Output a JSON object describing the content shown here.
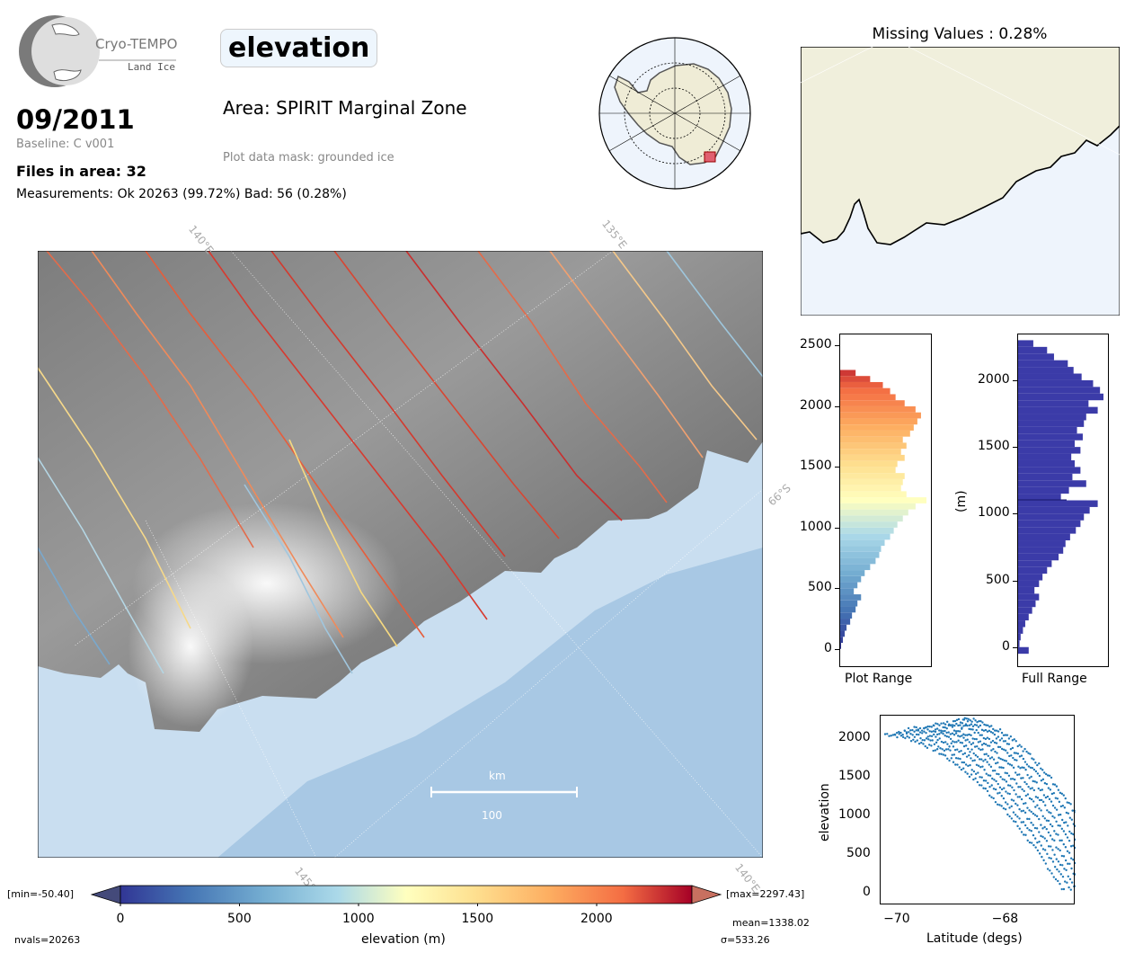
{
  "logo": {
    "name": "Cryo-TEMPO",
    "sub": "Land Ice"
  },
  "parameter": "elevation",
  "date": "09/2011",
  "baseline": "Baseline: C v001",
  "files": "Files in area: 32",
  "measurements": "Measurements: Ok 20263 (99.72%) Bad: 56 (0.28%)",
  "area": "Area: SPIRIT Marginal Zone",
  "mask": "Plot data mask: grounded ice",
  "missing": "Missing Values : 0.28%",
  "map": {
    "lon_labels": [
      "140°E",
      "135°E",
      "145°E",
      "140°E"
    ],
    "lat_label": "66°S",
    "scale_unit": "km",
    "scale_value": "100"
  },
  "colorbar": {
    "min_label": "[min=-50.40]",
    "max_label": "[max=2297.43]",
    "ticks": [
      "0",
      "500",
      "1000",
      "1500",
      "2000"
    ],
    "label": "elevation (m)",
    "mean": "mean=1338.02",
    "sigma": "σ=533.26",
    "nvals": "nvals=20263",
    "vmin": 0,
    "vmax": 2400
  },
  "hist_plot_range": {
    "xlabel": "Plot Range",
    "yticks": [
      "0",
      "500",
      "1000",
      "1500",
      "2000",
      "2500"
    ]
  },
  "hist_full_range": {
    "xlabel": "Full Range",
    "ylabel": "(m)",
    "yticks": [
      "0",
      "500",
      "1000",
      "1500",
      "2000"
    ]
  },
  "scatter": {
    "xlabel": "Latitude (degs)",
    "ylabel": "elevation",
    "xticks": [
      "−70",
      "−68"
    ],
    "yticks": [
      "0",
      "500",
      "1000",
      "1500",
      "2000"
    ]
  },
  "colors": {
    "ocean": "#a8cce6",
    "land": "#f0efdc",
    "hist_full": "#3b3ba8",
    "scatter": "#1f77b4"
  },
  "chart_data": [
    {
      "type": "bar",
      "title": "",
      "xlabel": "Plot Range",
      "ylabel": "",
      "ylim": [
        -150,
        2600
      ],
      "bins": [
        0,
        50,
        100,
        150,
        200,
        250,
        300,
        350,
        400,
        450,
        500,
        550,
        600,
        650,
        700,
        750,
        800,
        850,
        900,
        950,
        1000,
        1050,
        1100,
        1150,
        1200,
        1250,
        1300,
        1350,
        1400,
        1450,
        1500,
        1550,
        1600,
        1650,
        1700,
        1750,
        1800,
        1850,
        1900,
        1950,
        2000,
        2050,
        2100,
        2150,
        2200,
        2250
      ],
      "values": [
        2,
        4,
        6,
        8,
        12,
        14,
        18,
        20,
        24,
        16,
        20,
        24,
        28,
        34,
        40,
        44,
        46,
        50,
        56,
        60,
        64,
        70,
        76,
        84,
        96,
        74,
        68,
        70,
        72,
        62,
        64,
        72,
        68,
        74,
        70,
        78,
        82,
        86,
        90,
        84,
        72,
        62,
        56,
        48,
        34,
        18
      ]
    },
    {
      "type": "bar",
      "title": "",
      "xlabel": "Full Range",
      "ylabel": "(m)",
      "ylim": [
        -150,
        2350
      ],
      "bins": [
        -50,
        0,
        50,
        100,
        150,
        200,
        250,
        300,
        350,
        400,
        450,
        500,
        550,
        600,
        650,
        700,
        750,
        800,
        850,
        900,
        950,
        1000,
        1050,
        1100,
        1150,
        1200,
        1250,
        1300,
        1350,
        1400,
        1450,
        1500,
        1550,
        1600,
        1650,
        1700,
        1750,
        1800,
        1850,
        1900,
        1950,
        2000,
        2050,
        2100,
        2150,
        2200,
        2250
      ],
      "values": [
        10,
        2,
        3,
        5,
        7,
        10,
        13,
        16,
        19,
        15,
        19,
        22,
        26,
        30,
        36,
        40,
        42,
        46,
        51,
        55,
        58,
        63,
        70,
        38,
        45,
        60,
        48,
        55,
        50,
        47,
        55,
        50,
        57,
        52,
        58,
        60,
        70,
        62,
        75,
        72,
        66,
        56,
        49,
        44,
        32,
        26,
        14
      ]
    },
    {
      "type": "scatter",
      "title": "",
      "xlabel": "Latitude (degs)",
      "ylabel": "elevation",
      "xlim": [
        -70.3,
        -66.7
      ],
      "ylim": [
        -150,
        2300
      ]
    }
  ]
}
